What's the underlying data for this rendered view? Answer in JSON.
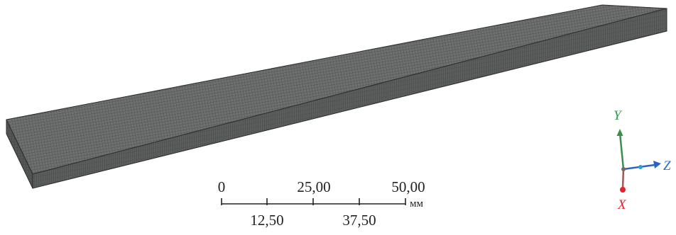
{
  "model": {
    "name": "meshed-rectangular-plate"
  },
  "scale_bar": {
    "major_labels": [
      "0",
      "25,00",
      "50,00"
    ],
    "minor_labels": [
      "12,50",
      "37,50"
    ],
    "unit": "мм"
  },
  "triad": {
    "x_label": "X",
    "y_label": "Y",
    "z_label": "Z",
    "colors": {
      "x": "#e2232b",
      "y": "#2e9b4a",
      "z": "#1e6fd6"
    }
  },
  "colors": {
    "mesh_face": "#6e7170",
    "mesh_line": "#3f4241",
    "side_face": "#5a5d5c",
    "edge": "#2b2d2c"
  }
}
